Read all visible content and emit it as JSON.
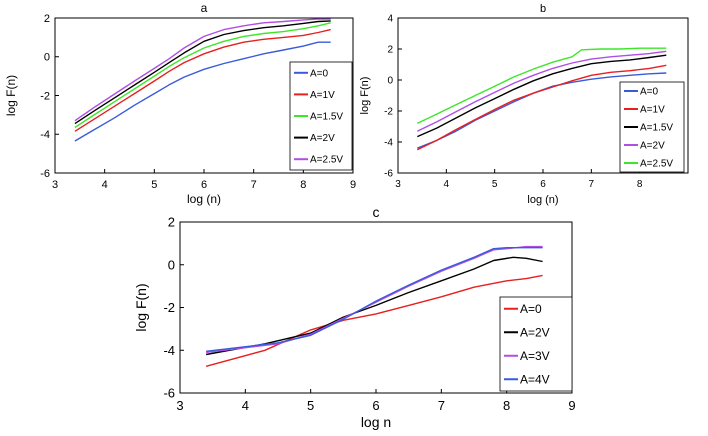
{
  "chart_data": [
    {
      "type": "line",
      "title": "a",
      "xlabel": "log (n)",
      "ylabel": "log  F(n)",
      "xlim": [
        3,
        9
      ],
      "ylim": [
        -6,
        2
      ],
      "xticks": [
        3,
        4,
        5,
        6,
        7,
        8,
        9
      ],
      "yticks": [
        -6,
        -4,
        -2,
        0,
        2
      ],
      "legend_position": "right",
      "series": [
        {
          "name": "A=0",
          "color": "#3a5bd9",
          "points": [
            [
              3.4,
              -4.35
            ],
            [
              3.8,
              -3.75
            ],
            [
              4.2,
              -3.15
            ],
            [
              4.6,
              -2.5
            ],
            [
              5.0,
              -1.9
            ],
            [
              5.3,
              -1.45
            ],
            [
              5.6,
              -1.05
            ],
            [
              6.0,
              -0.65
            ],
            [
              6.4,
              -0.35
            ],
            [
              6.8,
              -0.1
            ],
            [
              7.2,
              0.15
            ],
            [
              7.6,
              0.35
            ],
            [
              8.0,
              0.55
            ],
            [
              8.3,
              0.75
            ],
            [
              8.55,
              0.75
            ]
          ]
        },
        {
          "name": "A=1V",
          "color": "#e62020",
          "points": [
            [
              3.4,
              -3.85
            ],
            [
              3.8,
              -3.2
            ],
            [
              4.2,
              -2.55
            ],
            [
              4.6,
              -1.9
            ],
            [
              5.0,
              -1.25
            ],
            [
              5.3,
              -0.75
            ],
            [
              5.6,
              -0.3
            ],
            [
              6.0,
              0.15
            ],
            [
              6.4,
              0.5
            ],
            [
              6.8,
              0.75
            ],
            [
              7.2,
              0.9
            ],
            [
              7.6,
              1.0
            ],
            [
              8.0,
              1.1
            ],
            [
              8.3,
              1.25
            ],
            [
              8.55,
              1.4
            ]
          ]
        },
        {
          "name": "A=1.5V",
          "color": "#3ee62a",
          "points": [
            [
              3.4,
              -3.65
            ],
            [
              3.8,
              -2.98
            ],
            [
              4.2,
              -2.32
            ],
            [
              4.6,
              -1.66
            ],
            [
              5.0,
              -1.0
            ],
            [
              5.3,
              -0.5
            ],
            [
              5.6,
              -0.05
            ],
            [
              6.0,
              0.45
            ],
            [
              6.4,
              0.8
            ],
            [
              6.8,
              1.05
            ],
            [
              7.2,
              1.2
            ],
            [
              7.6,
              1.3
            ],
            [
              8.0,
              1.45
            ],
            [
              8.3,
              1.6
            ],
            [
              8.55,
              1.75
            ]
          ]
        },
        {
          "name": "A=2V",
          "color": "#000000",
          "points": [
            [
              3.4,
              -3.45
            ],
            [
              3.8,
              -2.78
            ],
            [
              4.2,
              -2.12
            ],
            [
              4.6,
              -1.46
            ],
            [
              5.0,
              -0.8
            ],
            [
              5.3,
              -0.3
            ],
            [
              5.6,
              0.2
            ],
            [
              6.0,
              0.8
            ],
            [
              6.4,
              1.15
            ],
            [
              6.8,
              1.35
            ],
            [
              7.2,
              1.5
            ],
            [
              7.6,
              1.6
            ],
            [
              8.0,
              1.72
            ],
            [
              8.3,
              1.82
            ],
            [
              8.55,
              1.85
            ]
          ]
        },
        {
          "name": "A=2.5V",
          "color": "#b04ee6",
          "points": [
            [
              3.4,
              -3.3
            ],
            [
              3.8,
              -2.6
            ],
            [
              4.2,
              -1.92
            ],
            [
              4.6,
              -1.25
            ],
            [
              5.0,
              -0.6
            ],
            [
              5.3,
              -0.1
            ],
            [
              5.6,
              0.45
            ],
            [
              6.0,
              1.05
            ],
            [
              6.4,
              1.4
            ],
            [
              6.8,
              1.6
            ],
            [
              7.2,
              1.75
            ],
            [
              7.6,
              1.82
            ],
            [
              8.0,
              1.9
            ],
            [
              8.3,
              1.95
            ],
            [
              8.55,
              1.95
            ]
          ]
        }
      ]
    },
    {
      "type": "line",
      "title": "b",
      "xlabel": "log (n)",
      "ylabel": "log  F(n)",
      "xlim": [
        3,
        9
      ],
      "ylim": [
        -6,
        4
      ],
      "xticks": [
        3,
        4,
        5,
        6,
        7,
        8
      ],
      "yticks": [
        -6,
        -4,
        -2,
        0,
        2,
        4
      ],
      "legend_position": "right",
      "series": [
        {
          "name": "A=0",
          "color": "#3a5bd9",
          "points": [
            [
              3.4,
              -4.4
            ],
            [
              3.8,
              -3.9
            ],
            [
              4.2,
              -3.3
            ],
            [
              4.6,
              -2.6
            ],
            [
              5.0,
              -2.0
            ],
            [
              5.4,
              -1.4
            ],
            [
              5.8,
              -0.85
            ],
            [
              6.2,
              -0.4
            ],
            [
              6.6,
              -0.15
            ],
            [
              7.0,
              0.05
            ],
            [
              7.4,
              0.2
            ],
            [
              7.8,
              0.3
            ],
            [
              8.2,
              0.4
            ],
            [
              8.55,
              0.45
            ]
          ]
        },
        {
          "name": "A=1V",
          "color": "#e62020",
          "points": [
            [
              3.4,
              -4.5
            ],
            [
              3.8,
              -3.9
            ],
            [
              4.2,
              -3.2
            ],
            [
              4.6,
              -2.55
            ],
            [
              5.0,
              -1.9
            ],
            [
              5.4,
              -1.3
            ],
            [
              5.8,
              -0.85
            ],
            [
              6.2,
              -0.45
            ],
            [
              6.6,
              -0.05
            ],
            [
              7.0,
              0.3
            ],
            [
              7.4,
              0.5
            ],
            [
              7.8,
              0.6
            ],
            [
              8.2,
              0.75
            ],
            [
              8.55,
              0.95
            ]
          ]
        },
        {
          "name": "A=1.5V",
          "color": "#000000",
          "points": [
            [
              3.4,
              -3.65
            ],
            [
              3.8,
              -3.1
            ],
            [
              4.2,
              -2.45
            ],
            [
              4.6,
              -1.8
            ],
            [
              5.0,
              -1.2
            ],
            [
              5.4,
              -0.6
            ],
            [
              5.8,
              -0.05
            ],
            [
              6.2,
              0.4
            ],
            [
              6.6,
              0.75
            ],
            [
              7.0,
              1.05
            ],
            [
              7.4,
              1.2
            ],
            [
              7.8,
              1.3
            ],
            [
              8.2,
              1.45
            ],
            [
              8.55,
              1.6
            ]
          ]
        },
        {
          "name": "A=2V",
          "color": "#b04ee6",
          "points": [
            [
              3.4,
              -3.3
            ],
            [
              3.8,
              -2.7
            ],
            [
              4.2,
              -2.05
            ],
            [
              4.6,
              -1.4
            ],
            [
              5.0,
              -0.8
            ],
            [
              5.4,
              -0.2
            ],
            [
              5.8,
              0.3
            ],
            [
              6.2,
              0.75
            ],
            [
              6.6,
              1.1
            ],
            [
              7.0,
              1.35
            ],
            [
              7.4,
              1.5
            ],
            [
              7.8,
              1.6
            ],
            [
              8.2,
              1.7
            ],
            [
              8.55,
              1.85
            ]
          ]
        },
        {
          "name": "A=2.5V",
          "color": "#3ee62a",
          "points": [
            [
              3.4,
              -2.8
            ],
            [
              3.8,
              -2.2
            ],
            [
              4.2,
              -1.6
            ],
            [
              4.6,
              -1.0
            ],
            [
              5.0,
              -0.4
            ],
            [
              5.4,
              0.2
            ],
            [
              5.8,
              0.7
            ],
            [
              6.2,
              1.15
            ],
            [
              6.6,
              1.5
            ],
            [
              6.8,
              1.95
            ],
            [
              7.2,
              2.0
            ],
            [
              7.6,
              2.0
            ],
            [
              8.0,
              2.05
            ],
            [
              8.3,
              2.05
            ],
            [
              8.55,
              2.05
            ]
          ]
        }
      ]
    },
    {
      "type": "line",
      "title": "c",
      "xlabel": "log n",
      "ylabel": "log F(n)",
      "xlim": [
        3,
        9
      ],
      "ylim": [
        -6,
        2
      ],
      "xticks": [
        3,
        4,
        5,
        6,
        7,
        8,
        9
      ],
      "yticks": [
        -6,
        -4,
        -2,
        0,
        2
      ],
      "legend_position": "right",
      "series": [
        {
          "name": "A=0",
          "color": "#e62020",
          "points": [
            [
              3.4,
              -4.75
            ],
            [
              4.3,
              -4.0
            ],
            [
              5.0,
              -3.05
            ],
            [
              5.5,
              -2.6
            ],
            [
              6.0,
              -2.3
            ],
            [
              6.5,
              -1.9
            ],
            [
              7.0,
              -1.5
            ],
            [
              7.5,
              -1.05
            ],
            [
              8.0,
              -0.75
            ],
            [
              8.3,
              -0.65
            ],
            [
              8.55,
              -0.5
            ]
          ]
        },
        {
          "name": "A=2V",
          "color": "#000000",
          "points": [
            [
              3.4,
              -4.2
            ],
            [
              4.3,
              -3.7
            ],
            [
              5.0,
              -3.2
            ],
            [
              5.5,
              -2.45
            ],
            [
              6.0,
              -1.9
            ],
            [
              6.5,
              -1.3
            ],
            [
              7.0,
              -0.75
            ],
            [
              7.5,
              -0.2
            ],
            [
              7.8,
              0.2
            ],
            [
              8.1,
              0.35
            ],
            [
              8.3,
              0.3
            ],
            [
              8.55,
              0.15
            ]
          ]
        },
        {
          "name": "A=3V",
          "color": "#b04ee6",
          "points": [
            [
              3.4,
              -4.1
            ],
            [
              4.5,
              -3.7
            ],
            [
              5.0,
              -3.25
            ],
            [
              5.5,
              -2.5
            ],
            [
              6.0,
              -1.75
            ],
            [
              6.5,
              -1.0
            ],
            [
              7.0,
              -0.3
            ],
            [
              7.5,
              0.3
            ],
            [
              7.8,
              0.7
            ],
            [
              8.0,
              0.75
            ],
            [
              8.3,
              0.85
            ],
            [
              8.55,
              0.85
            ]
          ]
        },
        {
          "name": "A=4V",
          "color": "#3a5bd9",
          "points": [
            [
              3.4,
              -4.05
            ],
            [
              4.5,
              -3.65
            ],
            [
              5.0,
              -3.3
            ],
            [
              5.5,
              -2.55
            ],
            [
              6.0,
              -1.7
            ],
            [
              6.5,
              -0.95
            ],
            [
              7.0,
              -0.25
            ],
            [
              7.5,
              0.35
            ],
            [
              7.8,
              0.75
            ],
            [
              8.0,
              0.8
            ],
            [
              8.3,
              0.8
            ],
            [
              8.55,
              0.8
            ]
          ]
        }
      ]
    }
  ]
}
